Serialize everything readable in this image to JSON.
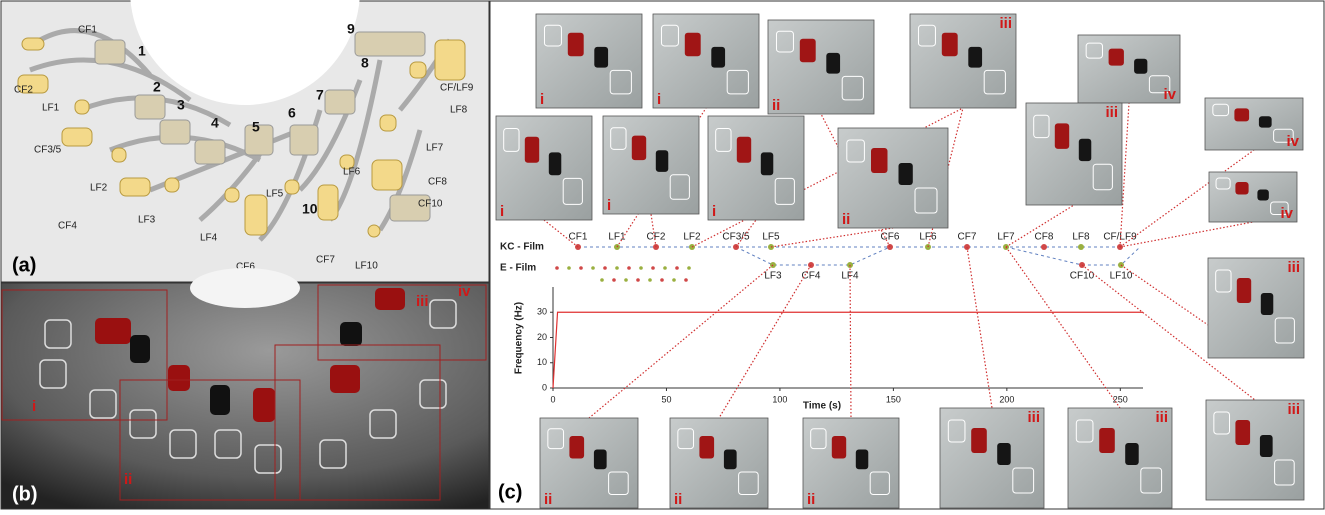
{
  "panel_a": {
    "tag": "(a)",
    "labels": [
      "CF1",
      "1",
      "CF2",
      "2",
      "LF1",
      "3",
      "CF3/5",
      "4",
      "5",
      "LF2",
      "CF4",
      "LF3",
      "LF4",
      "LF5",
      "6",
      "7",
      "LF6",
      "8",
      "9",
      "CF/LF9",
      "LF8",
      "LF7",
      "CF8",
      "CF10",
      "10",
      "CF6",
      "CF7",
      "LF10"
    ]
  },
  "panel_b": {
    "tag": "(b)",
    "regions": [
      "i",
      "ii",
      "iii",
      "iv"
    ]
  },
  "panel_c": {
    "tag": "(c)",
    "kc_film": {
      "label": "KC - Film",
      "points": [
        "CF1",
        "LF1",
        "CF2",
        "LF2",
        "CF3/5",
        "LF5",
        "CF6",
        "LF6",
        "CF7",
        "LF7",
        "CF8",
        "LF8",
        "CF/LF9"
      ]
    },
    "e_film": {
      "label": "E - Film",
      "points": [
        "LF3",
        "CF4",
        "LF4",
        "CF10",
        "LF10"
      ]
    },
    "chart": {
      "x": [
        0,
        2,
        260
      ],
      "values": [
        0,
        30,
        30
      ],
      "xlim": [
        0,
        260
      ],
      "ylim": [
        0,
        40
      ],
      "xticks": [
        0,
        50,
        100,
        150,
        200,
        250
      ],
      "yticks": [
        0,
        10,
        20,
        30
      ],
      "x_label": "Time (s)",
      "y_label": "Frequency (Hz)",
      "color": "#e03030"
    },
    "thumbnails": [
      "i",
      "i",
      "ii",
      "iii",
      "iv",
      "i",
      "i",
      "i",
      "ii",
      "iii",
      "iv",
      "iv",
      "iii",
      "iii",
      "ii",
      "ii",
      "ii",
      "iii",
      "iii"
    ]
  }
}
